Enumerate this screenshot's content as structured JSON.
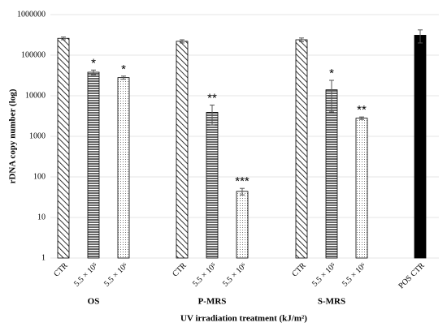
{
  "chart_data": {
    "type": "bar",
    "y_label": "rDNA copy number (log)",
    "x_label": "UV irradiation treatment (kJ/m²)",
    "log_scale": true,
    "grid": true,
    "ylim": [
      1,
      1000000
    ],
    "yticks": [
      1,
      10,
      100,
      1000,
      10000,
      100000,
      1000000
    ],
    "groups": [
      {
        "name": "OS",
        "categories": [
          "CTR",
          "5.5 × 10⁵",
          "5.5 × 10⁶"
        ],
        "values": [
          260000,
          38000,
          28000
        ],
        "errors": [
          20000,
          5000,
          2500
        ],
        "annotations": [
          null,
          "*",
          "*"
        ],
        "patterns": [
          "diagonal",
          "horizontal",
          "dotted"
        ]
      },
      {
        "name": "P-MRS",
        "categories": [
          "CTR",
          "5.5 × 10⁵",
          "5.5 × 10⁶"
        ],
        "values": [
          220000,
          3900,
          44
        ],
        "errors": [
          20000,
          2000,
          8
        ],
        "annotations": [
          null,
          "**",
          "***"
        ],
        "patterns": [
          "diagonal",
          "horizontal",
          "dotted"
        ]
      },
      {
        "name": "S-MRS",
        "categories": [
          "CTR",
          "5.5 × 10⁵",
          "5.5 × 10⁶"
        ],
        "values": [
          240000,
          14000,
          2800
        ],
        "errors": [
          25000,
          10000,
          200
        ],
        "annotations": [
          null,
          "*",
          "**"
        ],
        "patterns": [
          "diagonal",
          "horizontal",
          "dotted"
        ]
      },
      {
        "categories": [
          "POS CTR"
        ],
        "values": [
          310000
        ],
        "errors": [
          110000
        ],
        "annotations": [
          null
        ],
        "patterns": [
          "solid"
        ]
      }
    ]
  }
}
